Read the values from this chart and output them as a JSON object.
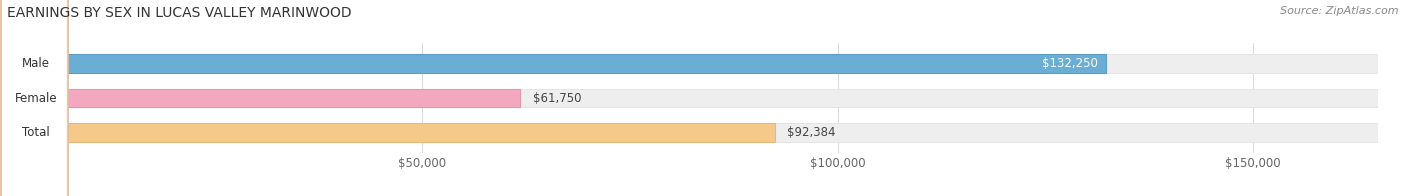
{
  "title": "EARNINGS BY SEX IN LUCAS VALLEY MARINWOOD",
  "source": "Source: ZipAtlas.com",
  "categories": [
    "Male",
    "Female",
    "Total"
  ],
  "values": [
    132250,
    61750,
    92384
  ],
  "bar_colors": [
    "#6aaed6",
    "#f4a8bf",
    "#f5c98a"
  ],
  "bar_edge_colors": [
    "#5a9ec6",
    "#e098af",
    "#e5b97a"
  ],
  "value_labels": [
    "$132,250",
    "$61,750",
    "$92,384"
  ],
  "xmin": 0,
  "xmax": 165000,
  "xticks": [
    50000,
    100000,
    150000
  ],
  "xtick_labels": [
    "$50,000",
    "$100,000",
    "$150,000"
  ],
  "background_color": "#ffffff",
  "bar_bg_color": "#eeeeee",
  "title_fontsize": 10,
  "tick_fontsize": 8.5,
  "value_fontsize": 8.5,
  "label_fontsize": 8.5
}
